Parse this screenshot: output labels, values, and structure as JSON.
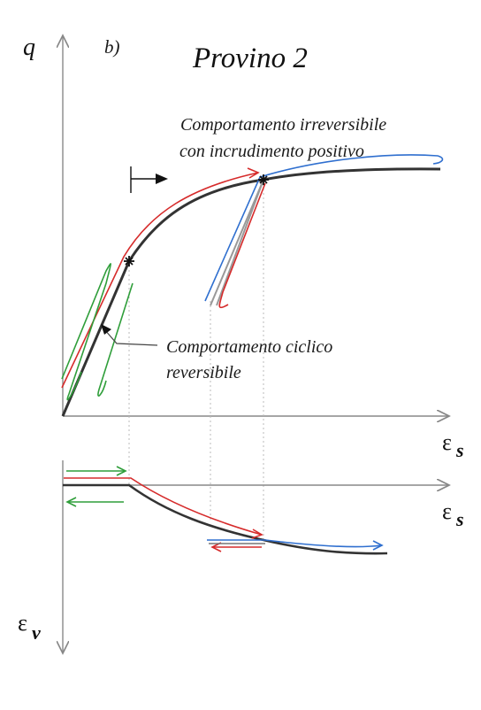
{
  "panel_label": "b)",
  "title": "Provino 2",
  "upper_plot": {
    "y_axis_label": "q",
    "x_axis_label": "ε",
    "x_axis_subscript": "s",
    "annotation_irreversible_line1": "Comportamento irreversibile",
    "annotation_irreversible_line2": "con incrudimento positivo",
    "annotation_cyclic_line1": "Comportamento ciclico",
    "annotation_cyclic_line2": "reversibile"
  },
  "lower_plot": {
    "x_axis_label": "ε",
    "x_axis_subscript": "s",
    "y_axis_label": "ε",
    "y_axis_subscript": "v"
  },
  "colors": {
    "curve": "#333333",
    "red_path": "#d62b2b",
    "blue_path": "#2f6fcf",
    "green_path": "#2f9e3a",
    "unload_grey": "#999999",
    "axis": "#888888",
    "guides": "#bbbbbb"
  }
}
